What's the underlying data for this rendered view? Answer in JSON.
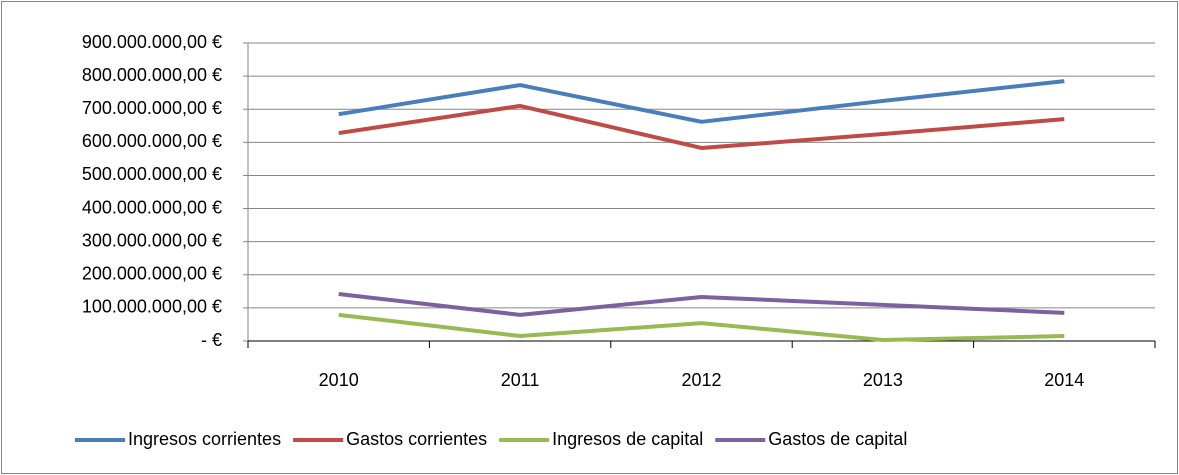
{
  "chart_data": {
    "type": "line",
    "categories": [
      "2010",
      "2011",
      "2012",
      "2013",
      "2014"
    ],
    "series": [
      {
        "name": "Ingresos corrientes",
        "color": "#4a7ebb",
        "values": [
          685000000,
          773000000,
          662000000,
          725000000,
          785000000
        ]
      },
      {
        "name": "Gastos corrientes",
        "color": "#be4b48",
        "values": [
          628000000,
          710000000,
          583000000,
          625000000,
          670000000
        ]
      },
      {
        "name": "Ingresos de capital",
        "color": "#98b954",
        "values": [
          79000000,
          15000000,
          54000000,
          3000000,
          15000000
        ]
      },
      {
        "name": "Gastos de capital",
        "color": "#7d60a0",
        "values": [
          142000000,
          79000000,
          133000000,
          109000000,
          85000000
        ]
      }
    ],
    "ylim": [
      0,
      900000000
    ],
    "yticks": [
      {
        "value": 0,
        "label": "-  €"
      },
      {
        "value": 100000000,
        "label": "100.000.000,00 €"
      },
      {
        "value": 200000000,
        "label": "200.000.000,00 €"
      },
      {
        "value": 300000000,
        "label": "300.000.000,00 €"
      },
      {
        "value": 400000000,
        "label": "400.000.000,00 €"
      },
      {
        "value": 500000000,
        "label": "500.000.000,00 €"
      },
      {
        "value": 600000000,
        "label": "600.000.000,00 €"
      },
      {
        "value": 700000000,
        "label": "700.000.000,00 €"
      },
      {
        "value": 800000000,
        "label": "800.000.000,00 €"
      },
      {
        "value": 900000000,
        "label": "900.000.000,00 €"
      }
    ],
    "grid": true,
    "legend": "bottom"
  }
}
